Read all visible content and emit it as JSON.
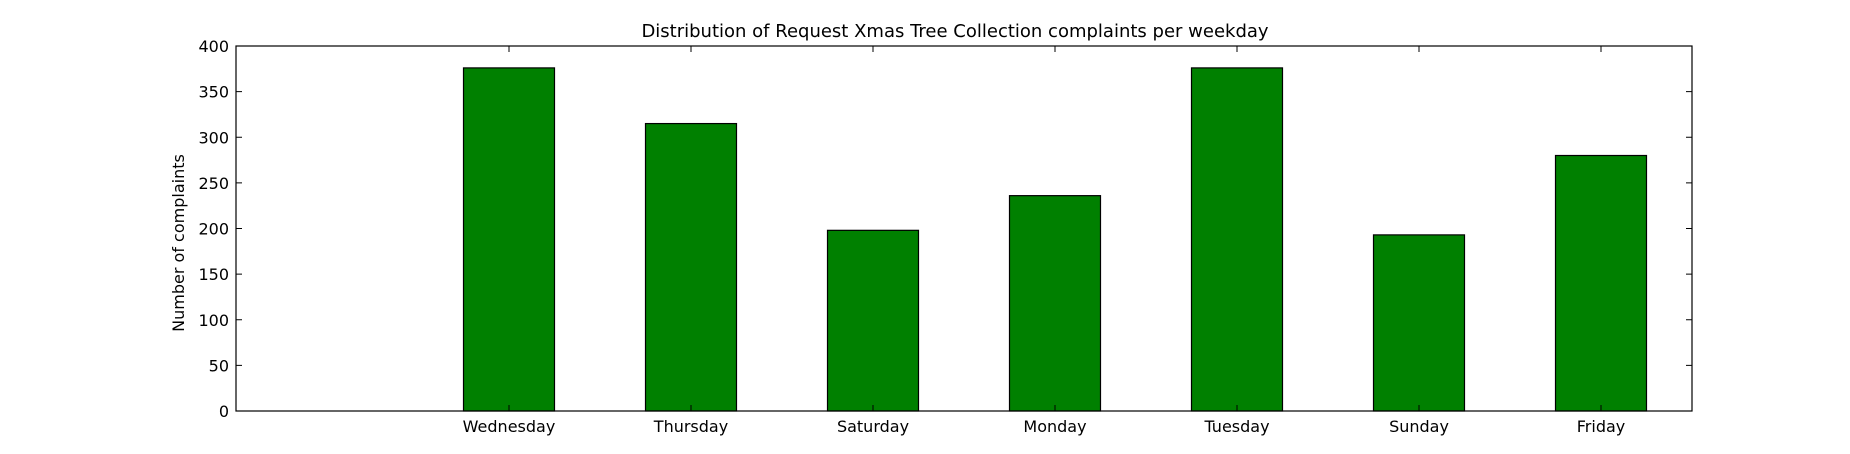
{
  "chart_data": {
    "type": "bar",
    "title": "Distribution of  Request Xmas Tree Collection complaints per weekday",
    "xlabel": "",
    "ylabel": "Number of complaints",
    "categories": [
      "Wednesday",
      "Thursday",
      "Saturday",
      "Monday",
      "Tuesday",
      "Sunday",
      "Friday"
    ],
    "values": [
      376,
      315,
      198,
      236,
      376,
      193,
      280
    ],
    "ylim": [
      0,
      400
    ],
    "yticks": [
      0,
      50,
      100,
      150,
      200,
      250,
      300,
      350,
      400
    ],
    "xlim": [
      -1.5,
      6.5
    ],
    "bar_color": "#008000",
    "edge_color": "#000000",
    "grid": false,
    "legend": "none"
  }
}
